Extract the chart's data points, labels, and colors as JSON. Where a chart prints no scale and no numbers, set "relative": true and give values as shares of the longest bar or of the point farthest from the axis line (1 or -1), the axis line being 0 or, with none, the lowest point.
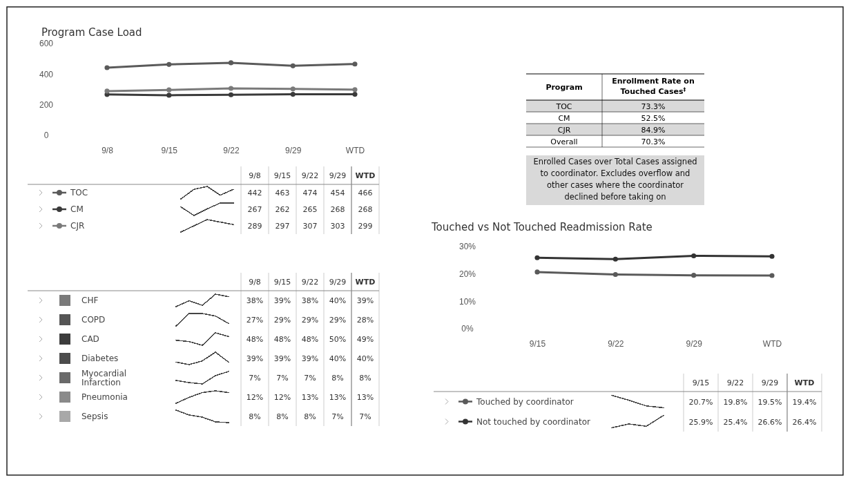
{
  "chart_data": [
    {
      "type": "line",
      "title": "Program Case Load",
      "categories": [
        "9/8",
        "9/15",
        "9/22",
        "9/29",
        "WTD"
      ],
      "ylim": [
        0,
        600
      ],
      "yticks": [
        0,
        200,
        400,
        600
      ],
      "marker": "circle",
      "legend": "bottom",
      "series": [
        {
          "name": "TOC",
          "color": "#5a5a5a",
          "values": [
            442,
            463,
            474,
            454,
            466
          ]
        },
        {
          "name": "CM",
          "color": "#3a3a3a",
          "values": [
            267,
            262,
            265,
            268,
            268
          ]
        },
        {
          "name": "CJR",
          "color": "#7a7a7a",
          "values": [
            289,
            297,
            307,
            303,
            299
          ]
        }
      ]
    },
    {
      "type": "other",
      "categories": [
        "9/8",
        "9/15",
        "9/22",
        "9/29",
        "WTD"
      ],
      "data_labels": true,
      "series": [
        {
          "values": [
            442,
            463,
            474,
            454,
            466
          ]
        },
        {
          "values": [
            267,
            262,
            265,
            268,
            268
          ]
        },
        {
          "values": [
            289,
            297,
            307,
            303,
            299
          ]
        }
      ]
    },
    {
      "type": "line",
      "relative": true,
      "categories": [
        null,
        null,
        null,
        null,
        null
      ],
      "series": [
        {
          "color": "#444444",
          "values": [
            0,
            0.77,
            1,
            0.3,
            0.77
          ]
        }
      ]
    },
    {
      "type": "line",
      "relative": true,
      "categories": [
        null,
        null,
        null,
        null,
        null
      ],
      "series": [
        {
          "color": "#444444",
          "values": [
            0.68,
            0,
            0.53,
            1,
            1
          ]
        }
      ]
    },
    {
      "type": "line",
      "relative": true,
      "categories": [
        null,
        null,
        null,
        null,
        null
      ],
      "series": [
        {
          "color": "#444444",
          "values": [
            0,
            0.5,
            1,
            0.8,
            0.6
          ]
        }
      ]
    },
    {
      "type": "other",
      "categories": [
        "9/8",
        "9/15",
        "9/22",
        "9/29",
        "WTD"
      ],
      "series": [
        {
          "name": "CHF",
          "color": "#7a7a7a",
          "values": [
            38,
            39,
            38,
            40,
            39
          ],
          "value_labels": [
            "38%",
            "39%",
            "38%",
            "40%",
            "39%"
          ]
        },
        {
          "name": "COPD",
          "color": "#555555",
          "values": [
            27,
            29,
            29,
            29,
            28
          ],
          "value_labels": [
            "27%",
            "29%",
            "29%",
            "29%",
            "28%"
          ]
        },
        {
          "name": "CAD",
          "color": "#3c3c3c",
          "values": [
            48,
            48,
            48,
            50,
            49
          ],
          "value_labels": [
            "48%",
            "48%",
            "48%",
            "50%",
            "49%"
          ]
        },
        {
          "name": "Diabetes",
          "color": "#4c4c4c",
          "values": [
            39,
            39,
            39,
            40,
            40
          ],
          "value_labels": [
            "39%",
            "39%",
            "39%",
            "40%",
            "40%"
          ]
        },
        {
          "name": "Myocardial Infarction",
          "color": "#6a6a6a",
          "values": [
            7,
            7,
            7,
            8,
            8
          ],
          "value_labels": [
            "7%",
            "7%",
            "7%",
            "8%",
            "8%"
          ]
        },
        {
          "name": "Pneumonia",
          "color": "#8a8a8a",
          "values": [
            12,
            12,
            13,
            13,
            13
          ],
          "value_labels": [
            "12%",
            "12%",
            "13%",
            "13%",
            "13%"
          ]
        },
        {
          "name": "Sepsis",
          "color": "#a8a8a8",
          "values": [
            8,
            8,
            8,
            7,
            7
          ],
          "value_labels": [
            "8%",
            "8%",
            "8%",
            "7%",
            "7%"
          ]
        }
      ]
    },
    {
      "type": "line",
      "relative": true,
      "categories": [
        null,
        null,
        null,
        null,
        null
      ],
      "series": [
        {
          "color": "#444444",
          "values": [
            0,
            0.47,
            0.1,
            1,
            0.8
          ]
        }
      ]
    },
    {
      "type": "line",
      "relative": true,
      "categories": [
        null,
        null,
        null,
        null,
        null
      ],
      "series": [
        {
          "color": "#444444",
          "values": [
            0,
            1,
            1,
            0.8,
            0.2
          ]
        }
      ]
    },
    {
      "type": "line",
      "relative": true,
      "categories": [
        null,
        null,
        null,
        null,
        null
      ],
      "series": [
        {
          "color": "#444444",
          "values": [
            0.4,
            0.3,
            0,
            1,
            0.7
          ]
        }
      ]
    },
    {
      "type": "line",
      "relative": true,
      "categories": [
        null,
        null,
        null,
        null,
        null
      ],
      "series": [
        {
          "color": "#444444",
          "values": [
            0.2,
            0,
            0.3,
            1,
            0.2
          ]
        }
      ]
    },
    {
      "type": "line",
      "relative": true,
      "categories": [
        null,
        null,
        null,
        null,
        null
      ],
      "series": [
        {
          "color": "#444444",
          "values": [
            0.28,
            0.11,
            0,
            0.67,
            1
          ]
        }
      ]
    },
    {
      "type": "line",
      "relative": true,
      "categories": [
        null,
        null,
        null,
        null,
        null
      ],
      "series": [
        {
          "color": "#444444",
          "values": [
            0,
            0.48,
            0.86,
            1,
            0.86
          ]
        }
      ]
    },
    {
      "type": "line",
      "relative": true,
      "categories": [
        null,
        null,
        null,
        null,
        null
      ],
      "series": [
        {
          "color": "#444444",
          "values": [
            1,
            0.61,
            0.44,
            0.06,
            0
          ]
        }
      ]
    },
    {
      "type": "other",
      "xlabel": "Program",
      "ylabel": "Enrollment Rate on Touched Cases$^{‡}$",
      "categories": [
        "TOC",
        "CM",
        "CJR",
        "Overall"
      ],
      "value_labels": [
        "73.3%",
        "52.5%",
        "84.9%",
        "70.3%"
      ],
      "annotations": [
        "Enrolled Cases over Total Cases assigned to coordinator. Excludes overflow and other cases where the coordinator declined before taking on"
      ]
    },
    {
      "type": "line",
      "title": "Touched vs Not Touched Readmission Rate",
      "categories": [
        "9/15",
        "9/22",
        "9/29",
        "WTD"
      ],
      "ylim": [
        0,
        30
      ],
      "yticks": [
        {
          "value": 0,
          "label": "0%"
        },
        {
          "value": 10,
          "label": "10%"
        },
        {
          "value": 20,
          "label": "20%"
        },
        {
          "value": 30,
          "label": "30%"
        }
      ],
      "marker": "circle",
      "legend": "bottom",
      "series": [
        {
          "name": "Touched by coordinator",
          "color": "#5a5a5a",
          "values": [
            20.7,
            19.8,
            19.5,
            19.4
          ]
        },
        {
          "name": "Not touched by coordinator",
          "color": "#333333",
          "values": [
            25.9,
            25.4,
            26.6,
            26.4
          ]
        }
      ]
    },
    {
      "type": "other",
      "categories": [
        "9/15",
        "9/22",
        "9/29",
        "WTD"
      ],
      "series": [
        {
          "values": [
            20.7,
            19.8,
            19.5,
            19.4
          ],
          "value_labels": [
            "20.7%",
            "19.8%",
            "19.5%",
            "19.4%"
          ]
        },
        {
          "values": [
            25.9,
            25.4,
            26.6,
            26.4
          ],
          "value_labels": [
            "25.9%",
            "25.4%",
            "26.6%",
            "26.4%"
          ]
        }
      ]
    },
    {
      "type": "line",
      "relative": true,
      "categories": [
        null,
        null,
        null,
        null
      ],
      "series": [
        {
          "color": "#444444",
          "values": [
            1,
            0.6,
            0.15,
            0
          ]
        }
      ]
    },
    {
      "type": "line",
      "relative": true,
      "categories": [
        null,
        null,
        null,
        null
      ],
      "series": [
        {
          "color": "#444444",
          "values": [
            0,
            0.31,
            0.12,
            1
          ]
        }
      ]
    }
  ]
}
